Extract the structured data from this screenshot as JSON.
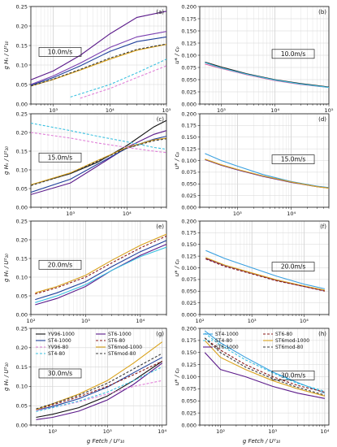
{
  "figure": {
    "common_xlabel": "g Fetch / U²₁₀",
    "ylabel_left": "g Hₛ / U²₁₀",
    "ylabel_right": "u* / cₚ"
  },
  "chart_data": [
    {
      "panel": "a",
      "wind": "10.0m/s",
      "type": "line",
      "xscale": "log",
      "xlim": [
        400,
        100000
      ],
      "ylim": [
        0,
        0.25
      ],
      "xticks": [
        "10³",
        "10⁴",
        "10⁵"
      ],
      "yticks": [
        "0.00",
        "0.05",
        "0.10",
        "0.15",
        "0.20",
        "0.25"
      ],
      "series": [
        {
          "color": "#5b1a8a",
          "style": "solid",
          "x": [
            400,
            1000,
            3000,
            10000,
            30000,
            100000
          ],
          "y": [
            0.062,
            0.085,
            0.125,
            0.18,
            0.222,
            0.238
          ]
        },
        {
          "color": "#7b3fb0",
          "style": "solid",
          "x": [
            400,
            1000,
            3000,
            10000,
            30000,
            100000
          ],
          "y": [
            0.05,
            0.072,
            0.105,
            0.145,
            0.172,
            0.186
          ]
        },
        {
          "color": "#1f3f9a",
          "style": "solid",
          "x": [
            400,
            1000,
            3000,
            10000,
            30000,
            100000
          ],
          "y": [
            0.048,
            0.068,
            0.098,
            0.135,
            0.16,
            0.172
          ]
        },
        {
          "color": "#d9a21b",
          "style": "solid",
          "x": [
            400,
            1000,
            3000,
            10000,
            30000,
            100000
          ],
          "y": [
            0.046,
            0.063,
            0.087,
            0.115,
            0.138,
            0.153
          ]
        },
        {
          "color": "#3a3a3a",
          "style": "dashed",
          "x": [
            400,
            1000,
            3000,
            10000,
            30000,
            100000
          ],
          "y": [
            0.046,
            0.064,
            0.089,
            0.118,
            0.14,
            0.154
          ]
        },
        {
          "color": "#39c0e0",
          "style": "dashed",
          "x": [
            2000,
            10000,
            30000,
            100000
          ],
          "y": [
            0.018,
            0.05,
            0.08,
            0.115
          ]
        },
        {
          "color": "#e080d8",
          "style": "dashed",
          "x": [
            3000,
            10000,
            30000,
            100000
          ],
          "y": [
            0.015,
            0.04,
            0.068,
            0.098
          ]
        }
      ]
    },
    {
      "panel": "b",
      "wind": "10.0m/s",
      "type": "line",
      "xscale": "log",
      "xlim": [
        400,
        100000
      ],
      "ylim": [
        0,
        0.2
      ],
      "xticks": [
        "10³",
        "10⁴",
        "10⁵"
      ],
      "yticks": [
        "0.000",
        "0.025",
        "0.050",
        "0.075",
        "0.100",
        "0.125",
        "0.150",
        "0.175",
        "0.200"
      ],
      "series": [
        {
          "color": "#222222",
          "style": "solid",
          "x": [
            500,
            1000,
            3000,
            10000,
            30000,
            100000
          ],
          "y": [
            0.086,
            0.076,
            0.062,
            0.05,
            0.042,
            0.035
          ]
        },
        {
          "color": "#e060a0",
          "style": "solid",
          "x": [
            500,
            1000,
            3000,
            10000,
            30000,
            100000
          ],
          "y": [
            0.082,
            0.073,
            0.06,
            0.048,
            0.04,
            0.034
          ]
        },
        {
          "color": "#39c0e0",
          "style": "solid",
          "x": [
            500,
            1000,
            3000,
            10000,
            30000,
            100000
          ],
          "y": [
            0.085,
            0.074,
            0.061,
            0.049,
            0.041,
            0.034
          ]
        }
      ]
    },
    {
      "panel": "c",
      "wind": "15.0m/s",
      "type": "line",
      "xscale": "log",
      "xlim": [
        200,
        50000
      ],
      "ylim": [
        0,
        0.25
      ],
      "xticks": [
        "10³",
        "10⁴"
      ],
      "yticks": [
        "0.00",
        "0.05",
        "0.10",
        "0.15",
        "0.20",
        "0.25"
      ],
      "series": [
        {
          "color": "#111111",
          "style": "solid",
          "x": [
            200,
            1000,
            3000,
            10000,
            30000,
            50000
          ],
          "y": [
            0.06,
            0.09,
            0.12,
            0.165,
            0.215,
            0.232
          ]
        },
        {
          "color": "#5b1a8a",
          "style": "solid",
          "x": [
            200,
            1000,
            3000,
            10000,
            30000,
            50000
          ],
          "y": [
            0.034,
            0.065,
            0.11,
            0.16,
            0.195,
            0.205
          ]
        },
        {
          "color": "#1f3f9a",
          "style": "solid",
          "x": [
            200,
            1000,
            3000,
            10000,
            30000,
            50000
          ],
          "y": [
            0.04,
            0.075,
            0.115,
            0.158,
            0.182,
            0.19
          ]
        },
        {
          "color": "#d9a21b",
          "style": "solid",
          "x": [
            200,
            1000,
            3000,
            10000,
            30000,
            50000
          ],
          "y": [
            0.06,
            0.092,
            0.125,
            0.16,
            0.18,
            0.185
          ]
        },
        {
          "color": "#3a3a3a",
          "style": "dashed",
          "x": [
            200,
            1000,
            3000,
            10000,
            30000,
            50000
          ],
          "y": [
            0.058,
            0.09,
            0.123,
            0.158,
            0.178,
            0.183
          ]
        },
        {
          "color": "#39c0e0",
          "style": "dashed",
          "x": [
            200,
            1000,
            3000,
            10000,
            30000,
            50000
          ],
          "y": [
            0.225,
            0.205,
            0.19,
            0.175,
            0.16,
            0.155
          ]
        },
        {
          "color": "#e080d8",
          "style": "dashed",
          "x": [
            200,
            1000,
            3000,
            10000,
            30000,
            50000
          ],
          "y": [
            0.2,
            0.185,
            0.172,
            0.16,
            0.15,
            0.146
          ]
        }
      ]
    },
    {
      "panel": "d",
      "wind": "15.0m/s",
      "type": "line",
      "xscale": "log",
      "xlim": [
        200,
        50000
      ],
      "ylim": [
        0,
        0.2
      ],
      "xticks": [
        "10³",
        "10⁴"
      ],
      "yticks": [
        "0.000",
        "0.025",
        "0.050",
        "0.075",
        "0.100",
        "0.125",
        "0.150",
        "0.175",
        "0.200"
      ],
      "series": [
        {
          "color": "#39a0e0",
          "style": "solid",
          "x": [
            250,
            500,
            1000,
            3000,
            10000,
            30000,
            50000
          ],
          "y": [
            0.115,
            0.1,
            0.088,
            0.07,
            0.055,
            0.045,
            0.042
          ]
        },
        {
          "color": "#5b1a8a",
          "style": "solid",
          "x": [
            250,
            500,
            1000,
            3000,
            10000,
            30000,
            50000
          ],
          "y": [
            0.102,
            0.09,
            0.08,
            0.066,
            0.053,
            0.044,
            0.041
          ]
        },
        {
          "color": "#d9a21b",
          "style": "solid",
          "x": [
            250,
            500,
            1000,
            3000,
            10000,
            30000,
            50000
          ],
          "y": [
            0.103,
            0.091,
            0.081,
            0.067,
            0.054,
            0.044,
            0.041
          ]
        }
      ]
    },
    {
      "panel": "e",
      "wind": "20.0m/s",
      "type": "line",
      "xscale": "log",
      "xlim": [
        100,
        30000
      ],
      "ylim": [
        0,
        0.25
      ],
      "xticks": [
        "10²",
        "10³",
        "10⁴"
      ],
      "yticks": [
        "0.00",
        "0.05",
        "0.10",
        "0.15",
        "0.20",
        "0.25"
      ],
      "series": [
        {
          "color": "#d9a21b",
          "style": "solid",
          "x": [
            120,
            300,
            1000,
            3000,
            10000,
            30000
          ],
          "y": [
            0.058,
            0.075,
            0.105,
            0.145,
            0.185,
            0.215
          ]
        },
        {
          "color": "#8b1a1a",
          "style": "dashed",
          "x": [
            120,
            300,
            1000,
            3000,
            10000,
            30000
          ],
          "y": [
            0.055,
            0.072,
            0.1,
            0.138,
            0.178,
            0.21
          ]
        },
        {
          "color": "#1f3f9a",
          "style": "solid",
          "x": [
            120,
            300,
            1000,
            3000,
            10000,
            30000
          ],
          "y": [
            0.04,
            0.058,
            0.088,
            0.128,
            0.168,
            0.198
          ]
        },
        {
          "color": "#5b1a8a",
          "style": "solid",
          "x": [
            120,
            300,
            1000,
            3000,
            10000,
            30000
          ],
          "y": [
            0.026,
            0.043,
            0.075,
            0.118,
            0.158,
            0.188
          ]
        },
        {
          "color": "#39c0e0",
          "style": "solid",
          "x": [
            120,
            300,
            1000,
            3000,
            10000,
            30000
          ],
          "y": [
            0.032,
            0.05,
            0.08,
            0.118,
            0.155,
            0.18
          ]
        }
      ]
    },
    {
      "panel": "f",
      "wind": "20.0m/s",
      "type": "line",
      "xscale": "log",
      "xlim": [
        100,
        30000
      ],
      "ylim": [
        0,
        0.2
      ],
      "xticks": [
        "10³",
        "10⁴"
      ],
      "yticks": [
        "0.000",
        "0.025",
        "0.050",
        "0.075",
        "0.100",
        "0.125",
        "0.150",
        "0.175",
        "0.200"
      ],
      "series": [
        {
          "color": "#39a0e0",
          "style": "solid",
          "x": [
            130,
            300,
            1000,
            3000,
            10000,
            25000
          ],
          "y": [
            0.137,
            0.12,
            0.1,
            0.082,
            0.065,
            0.055
          ]
        },
        {
          "color": "#5b1a8a",
          "style": "solid",
          "x": [
            130,
            300,
            1000,
            3000,
            10000,
            25000
          ],
          "y": [
            0.12,
            0.105,
            0.088,
            0.073,
            0.06,
            0.051
          ]
        },
        {
          "color": "#d9a21b",
          "style": "solid",
          "x": [
            130,
            300,
            1000,
            3000,
            10000,
            25000
          ],
          "y": [
            0.122,
            0.106,
            0.089,
            0.074,
            0.061,
            0.052
          ]
        },
        {
          "color": "#8b1a1a",
          "style": "dashed",
          "x": [
            130,
            300,
            1000,
            3000,
            10000,
            25000
          ],
          "y": [
            0.119,
            0.103,
            0.087,
            0.072,
            0.06,
            0.05
          ]
        }
      ]
    },
    {
      "panel": "g",
      "wind": "30.0m/s",
      "type": "line",
      "xscale": "log",
      "xlim": [
        40,
        12000
      ],
      "ylim": [
        0,
        0.25
      ],
      "xticks": [
        "10²",
        "10³",
        "10⁴"
      ],
      "yticks": [
        "0.00",
        "0.05",
        "0.10",
        "0.15",
        "0.20",
        "0.25"
      ],
      "legend": [
        "YV96-1000",
        "ST6-1000",
        "ST4-1000",
        "ST6-80",
        "YV96-80",
        "ST6mod-1000",
        "ST4-80",
        "ST6mod-80"
      ],
      "series": [
        {
          "name": "YV96-1000",
          "color": "#111111",
          "style": "solid",
          "x": [
            50,
            100,
            300,
            1000,
            3000,
            10000
          ],
          "y": [
            0.02,
            0.028,
            0.045,
            0.075,
            0.115,
            0.165
          ]
        },
        {
          "name": "ST6-1000",
          "color": "#5b1a8a",
          "style": "solid",
          "x": [
            50,
            100,
            300,
            1000,
            3000,
            10000
          ],
          "y": [
            0.014,
            0.02,
            0.036,
            0.065,
            0.105,
            0.16
          ]
        },
        {
          "name": "ST4-1000",
          "color": "#1f3f9a",
          "style": "solid",
          "x": [
            50,
            100,
            300,
            1000,
            3000,
            10000
          ],
          "y": [
            0.038,
            0.048,
            0.068,
            0.098,
            0.135,
            0.175
          ]
        },
        {
          "name": "ST6-80",
          "color": "#8b1a1a",
          "style": "dashed",
          "x": [
            50,
            100,
            300,
            1000,
            3000,
            10000
          ],
          "y": [
            0.04,
            0.052,
            0.073,
            0.1,
            0.13,
            0.165
          ]
        },
        {
          "name": "YV96-80",
          "color": "#e080d8",
          "style": "dashed",
          "x": [
            50,
            100,
            300,
            1000,
            3000,
            10000
          ],
          "y": [
            0.038,
            0.045,
            0.06,
            0.08,
            0.1,
            0.115
          ]
        },
        {
          "name": "ST6mod-1000",
          "color": "#d9a21b",
          "style": "solid",
          "x": [
            50,
            100,
            300,
            1000,
            3000,
            10000
          ],
          "y": [
            0.04,
            0.055,
            0.08,
            0.115,
            0.16,
            0.215
          ]
        },
        {
          "name": "ST4-80",
          "color": "#39c0e0",
          "style": "dashed",
          "x": [
            50,
            100,
            300,
            1000,
            3000,
            10000
          ],
          "y": [
            0.035,
            0.045,
            0.062,
            0.085,
            0.115,
            0.15
          ]
        },
        {
          "name": "ST6mod-80",
          "color": "#3a3a3a",
          "style": "dashed",
          "x": [
            50,
            100,
            300,
            1000,
            3000,
            10000
          ],
          "y": [
            0.042,
            0.055,
            0.077,
            0.108,
            0.145,
            0.185
          ]
        }
      ]
    },
    {
      "panel": "h",
      "wind": "30.0m/s",
      "type": "line",
      "xscale": "log",
      "xlim": [
        40,
        12000
      ],
      "ylim": [
        0,
        0.2
      ],
      "xticks": [
        "10²",
        "10³",
        "10⁴"
      ],
      "yticks": [
        "0.000",
        "0.025",
        "0.050",
        "0.075",
        "0.100",
        "0.125",
        "0.150",
        "0.175",
        "0.200"
      ],
      "legend": [
        "ST4-1000",
        "ST6-80",
        "ST4-80",
        "ST6mod-1000",
        "ST6-1000",
        "ST6mod-80"
      ],
      "series": [
        {
          "name": "ST4-1000",
          "color": "#39a0e0",
          "style": "solid",
          "x": [
            50,
            100,
            300,
            1000,
            3000,
            10000
          ],
          "y": [
            0.195,
            0.17,
            0.14,
            0.11,
            0.088,
            0.066
          ]
        },
        {
          "name": "ST6-80",
          "color": "#8b1a1a",
          "style": "dashed",
          "x": [
            50,
            100,
            300,
            1000,
            3000,
            10000
          ],
          "y": [
            0.18,
            0.155,
            0.125,
            0.1,
            0.082,
            0.068
          ]
        },
        {
          "name": "ST4-80",
          "color": "#39c0e0",
          "style": "dashed",
          "x": [
            50,
            100,
            300,
            1000,
            3000,
            10000
          ],
          "y": [
            0.19,
            0.165,
            0.135,
            0.108,
            0.086,
            0.07
          ]
        },
        {
          "name": "ST6mod-1000",
          "color": "#d9a21b",
          "style": "solid",
          "x": [
            50,
            100,
            300,
            1000,
            3000,
            10000
          ],
          "y": [
            0.175,
            0.14,
            0.115,
            0.092,
            0.075,
            0.06
          ]
        },
        {
          "name": "ST6-1000",
          "color": "#5b1a8a",
          "style": "solid",
          "x": [
            50,
            100,
            300,
            1000,
            3000,
            10000
          ],
          "y": [
            0.15,
            0.115,
            0.1,
            0.08,
            0.066,
            0.055
          ]
        },
        {
          "name": "ST6mod-80",
          "color": "#3a3a3a",
          "style": "dashed",
          "x": [
            50,
            100,
            300,
            1000,
            3000,
            10000
          ],
          "y": [
            0.18,
            0.15,
            0.12,
            0.096,
            0.078,
            0.062
          ]
        }
      ]
    }
  ]
}
